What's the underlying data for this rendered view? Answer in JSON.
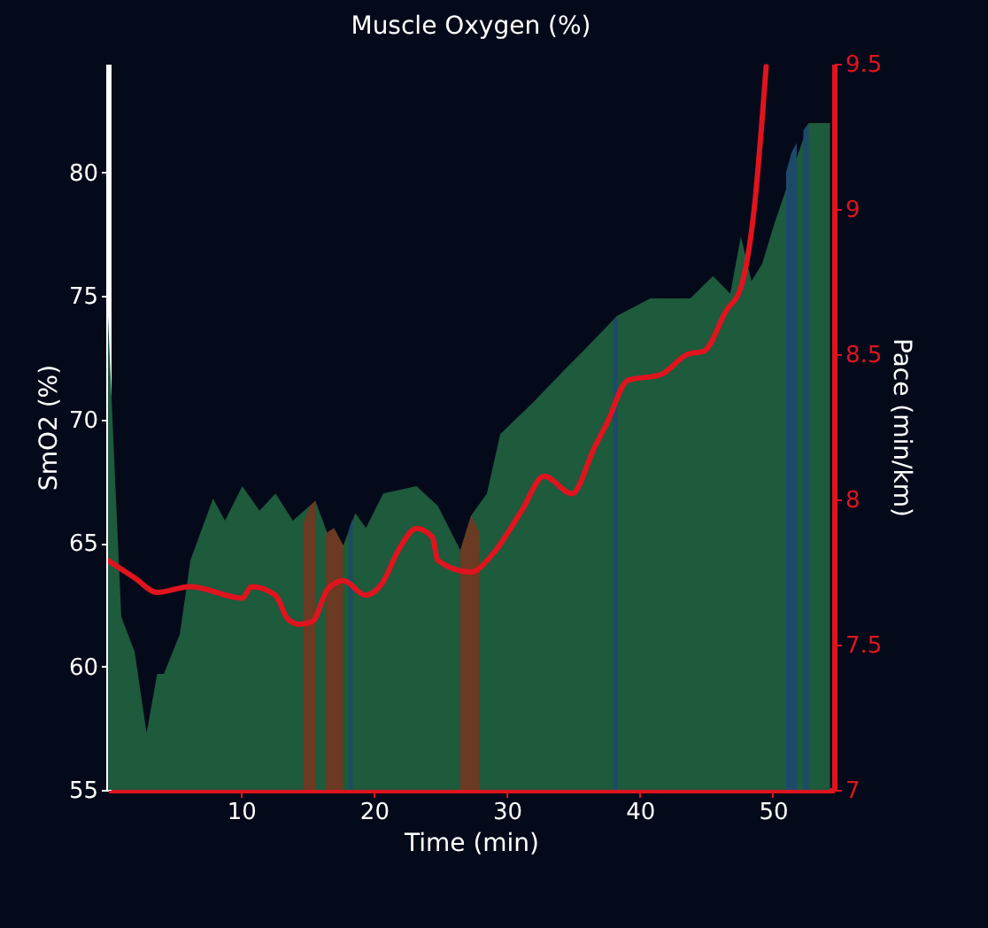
{
  "chart_data": {
    "type": "area",
    "title": "Muscle Oxygen (%)",
    "xlabel": "Time (min)",
    "ylabel": "SmO2 (%)",
    "y2label": "Pace (min/km)",
    "xlim": [
      0,
      54.6
    ],
    "xticks": [
      10,
      20,
      30,
      40,
      50
    ],
    "ylim": [
      55,
      84.4
    ],
    "yticks": [
      55,
      60,
      65,
      70,
      75,
      80
    ],
    "y2lim": [
      7,
      9.5
    ],
    "y2ticks": [
      7,
      7.5,
      8,
      8.5,
      9,
      9.5
    ],
    "series": [
      {
        "color": "#1e5a3c",
        "x": [
          0,
          0.5,
          1.0,
          2.0,
          2.9,
          3.7,
          4.2,
          5.4,
          6.2,
          7.9,
          8.8,
          10.1,
          11.4,
          12.6,
          13.9,
          15.6,
          16.5,
          17.7,
          18.6,
          19.4,
          20.7,
          23.2,
          24.8,
          26.5,
          27.3,
          28.5,
          29.5,
          32.0,
          34.5,
          35.8,
          38.3,
          40.8,
          43.8,
          45.5,
          46.8,
          47.6,
          48.4,
          49.2,
          50.1,
          52.7,
          53.9,
          54.3
        ],
        "values": [
          74.2,
          68,
          62,
          60.6,
          57.3,
          59.7,
          59.7,
          61.3,
          64.3,
          66.8,
          65.9,
          67.3,
          66.3,
          67.0,
          65.9,
          66.7,
          65.4,
          64.9,
          66.2,
          65.6,
          67.0,
          67.3,
          66.5,
          64.7,
          66.1,
          67.0,
          69.4,
          70.7,
          72.1,
          72.8,
          74.2,
          74.9,
          74.9,
          75.8,
          75.1,
          77.4,
          75.6,
          76.3,
          77.9,
          82.0,
          82.0,
          82.0
        ]
      },
      {
        "color": "#6b3a22",
        "x": [
          14.7,
          15.2,
          15.6
        ],
        "values": [
          65.8,
          66.5,
          66.7
        ]
      },
      {
        "color": "#6b3a22",
        "x": [
          16.4,
          17.0,
          17.7
        ],
        "values": [
          65.4,
          65.6,
          64.9
        ]
      },
      {
        "color": "#6b3a22",
        "x": [
          26.5,
          27.3,
          27.9
        ],
        "values": [
          64.7,
          66.1,
          65.5
        ]
      },
      {
        "color": "#1d4a6b",
        "x": [
          18.1,
          18.4
        ],
        "values": [
          65.5,
          66.0
        ]
      },
      {
        "color": "#1d4a6b",
        "x": [
          38.0,
          38.3
        ],
        "values": [
          74.0,
          74.2
        ]
      },
      {
        "color": "#1d4a6b",
        "x": [
          51.0,
          51.4,
          51.8
        ],
        "values": [
          80.0,
          80.8,
          81.2
        ]
      },
      {
        "color": "#1d4a6b",
        "x": [
          52.3,
          52.7
        ],
        "values": [
          81.7,
          82.0
        ]
      },
      {
        "type": "line",
        "axis": "y2",
        "color": "#e0141e",
        "x": [
          0,
          2,
          3.7,
          6.2,
          10.1,
          10.8,
          12.6,
          13.5,
          14.4,
          15.4,
          16.5,
          17.7,
          19.4,
          20.6,
          21.9,
          23.2,
          24.4,
          24.8,
          27.3,
          28.9,
          31.1,
          32.8,
          34.9,
          36.6,
          37.5,
          39.1,
          41.6,
          43.6,
          44.8,
          46.5,
          47.6,
          48.6,
          49.5
        ],
        "values": [
          7.79,
          7.73,
          7.68,
          7.7,
          7.66,
          7.7,
          7.67,
          7.59,
          7.57,
          7.58,
          7.69,
          7.72,
          7.67,
          7.71,
          7.83,
          7.9,
          7.87,
          7.79,
          7.75,
          7.81,
          7.96,
          8.08,
          8.02,
          8.18,
          8.26,
          8.41,
          8.43,
          8.5,
          8.51,
          8.65,
          8.73,
          9.0,
          9.49
        ]
      }
    ]
  }
}
